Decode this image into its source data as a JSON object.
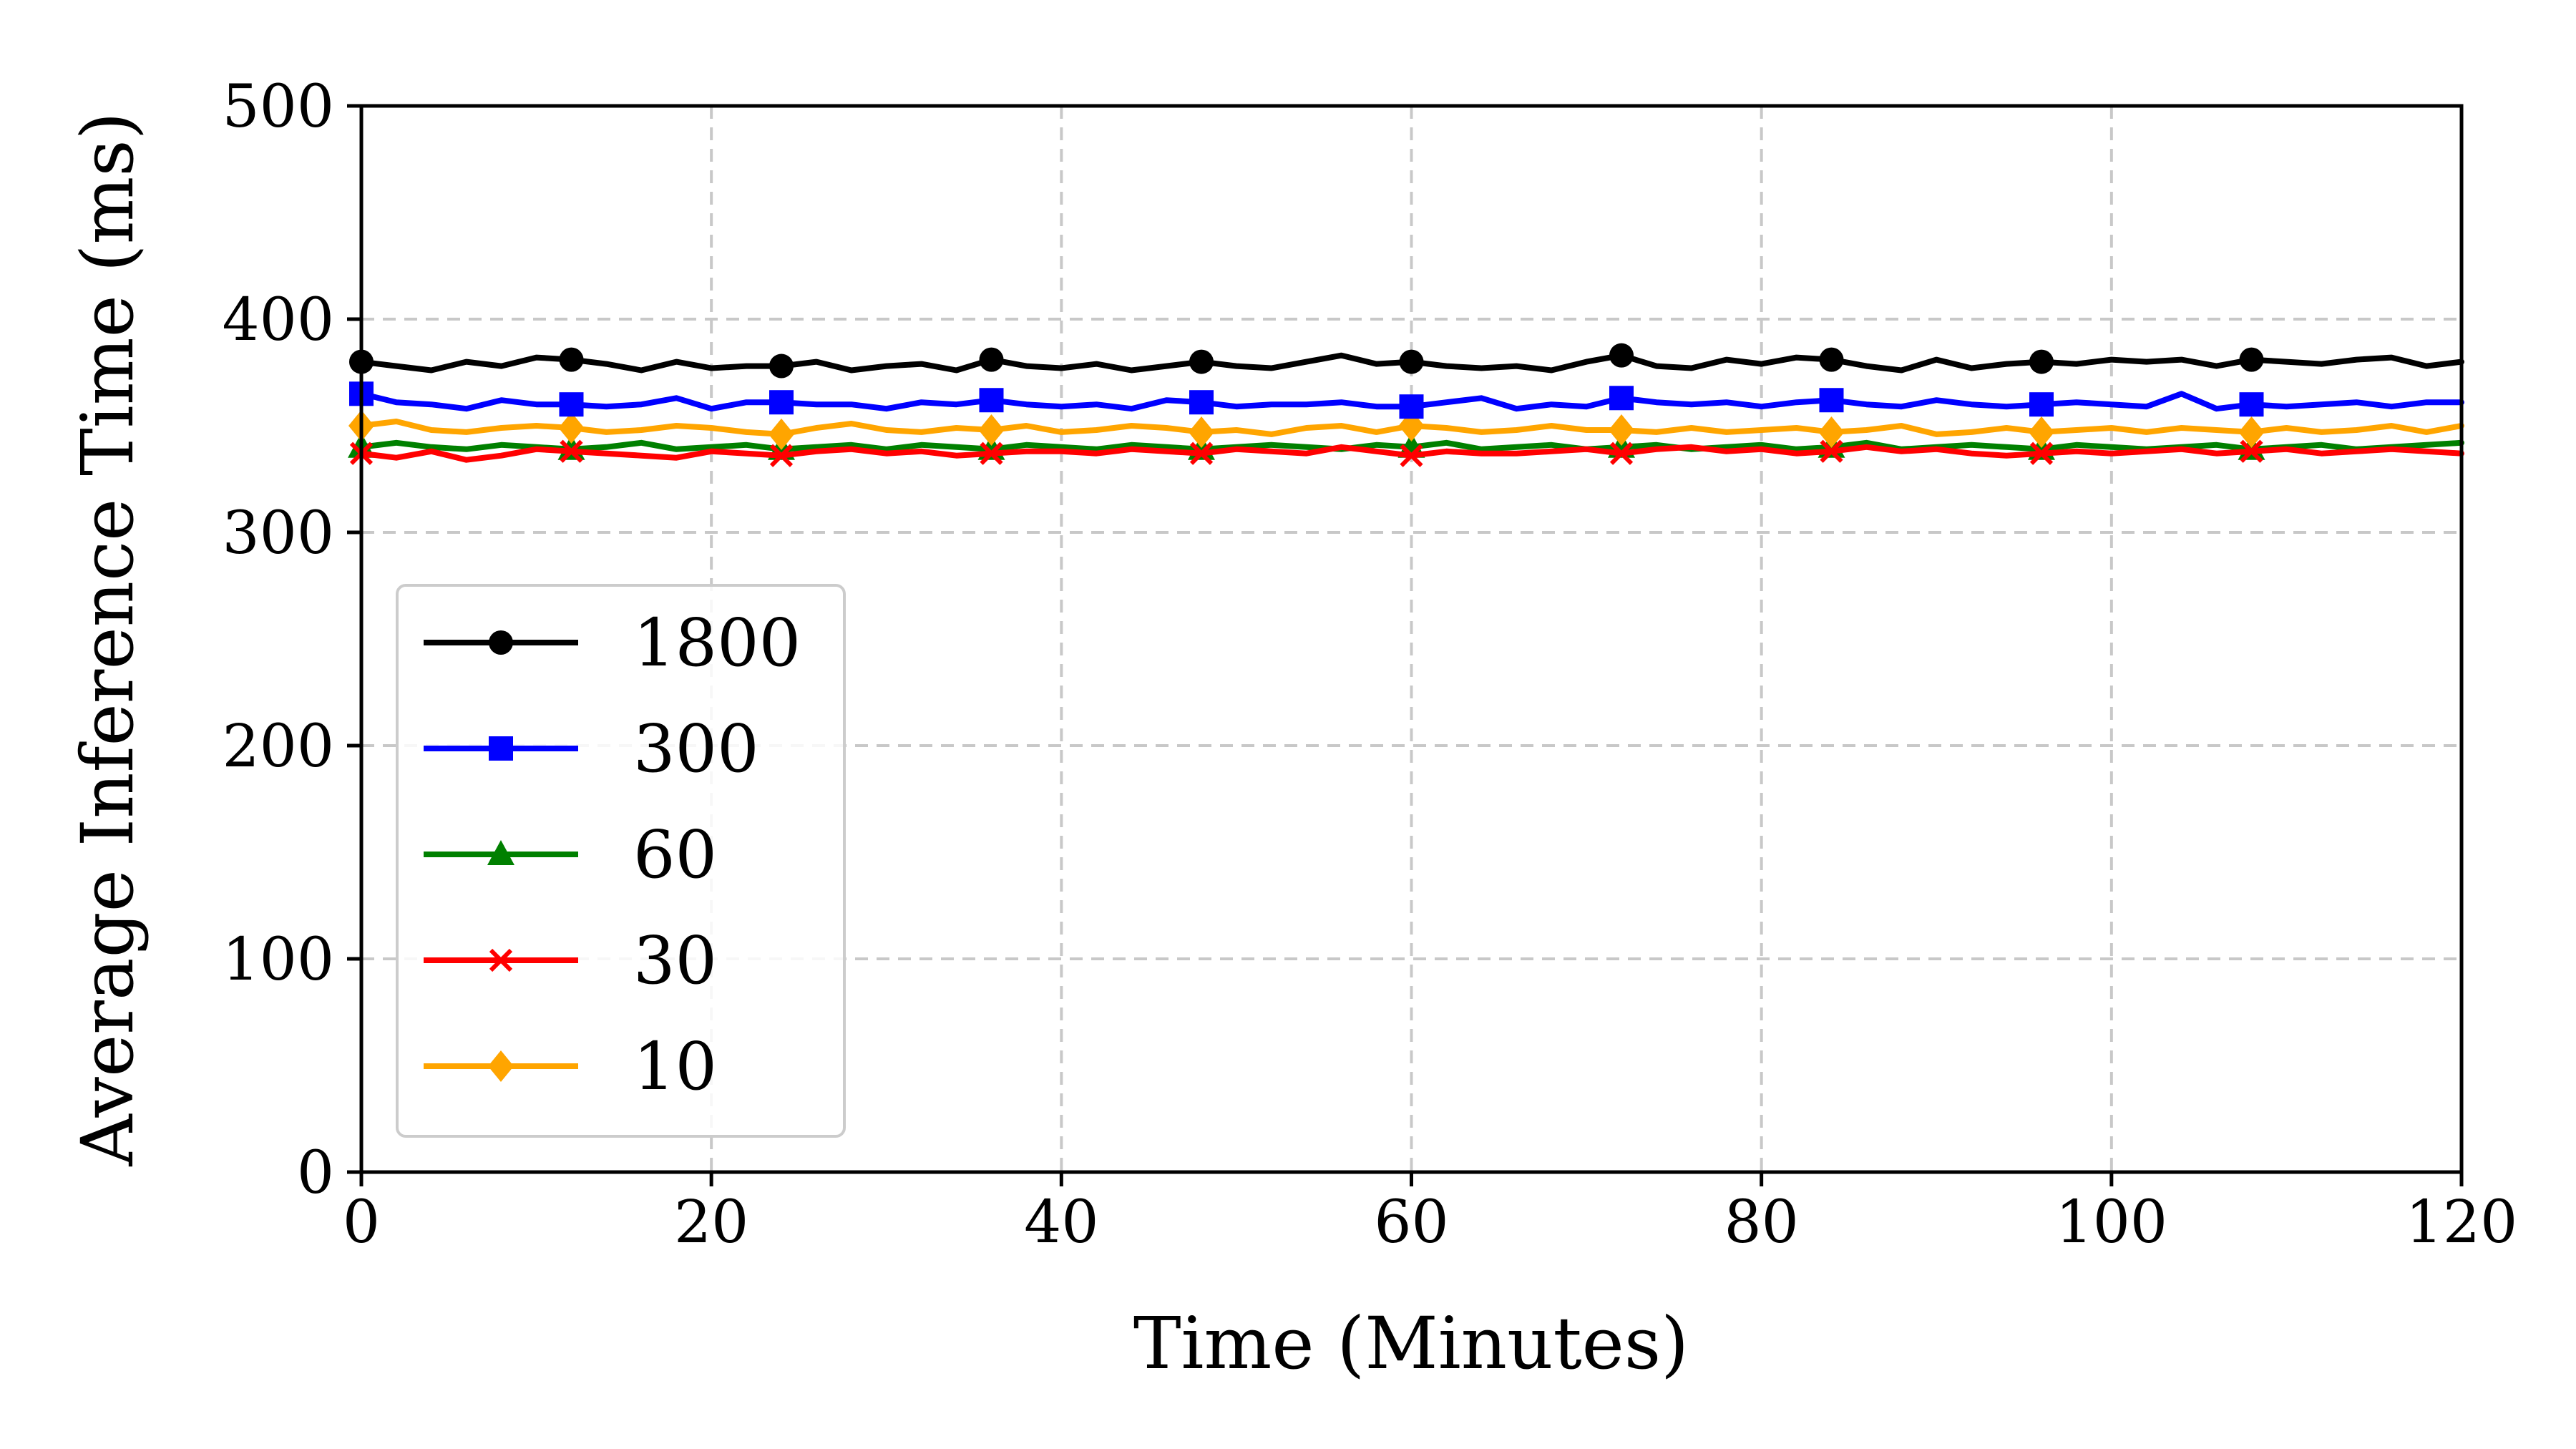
{
  "chart_data": {
    "type": "line",
    "title": "",
    "xlabel": "Time (Minutes)",
    "ylabel": "Average Inference Time (ms)",
    "xlim": [
      0,
      120
    ],
    "ylim": [
      0,
      500
    ],
    "xticks": [
      0,
      20,
      40,
      60,
      80,
      100,
      120
    ],
    "yticks": [
      0,
      100,
      200,
      300,
      400,
      500
    ],
    "xtick_labels": [
      "0",
      "20",
      "40",
      "60",
      "80",
      "100",
      "120"
    ],
    "ytick_labels": [
      "0",
      "100",
      "200",
      "300",
      "400",
      "500"
    ],
    "grid": true,
    "legend_position": "center-left",
    "x": [
      0,
      2,
      4,
      6,
      8,
      10,
      12,
      14,
      16,
      18,
      20,
      22,
      24,
      26,
      28,
      30,
      32,
      34,
      36,
      38,
      40,
      42,
      44,
      46,
      48,
      50,
      52,
      54,
      56,
      58,
      60,
      62,
      64,
      66,
      68,
      70,
      72,
      74,
      76,
      78,
      80,
      82,
      84,
      86,
      88,
      90,
      92,
      94,
      96,
      98,
      100,
      102,
      104,
      106,
      108,
      110,
      112,
      114,
      116,
      118,
      120
    ],
    "marker_x": [
      0,
      12,
      24,
      36,
      48,
      60,
      72,
      84,
      96,
      108
    ],
    "series": [
      {
        "name": "1800",
        "color": "#000000",
        "marker": "circle",
        "values": [
          380,
          378,
          376,
          380,
          378,
          382,
          381,
          379,
          376,
          380,
          377,
          378,
          378,
          380,
          376,
          378,
          379,
          376,
          381,
          378,
          377,
          379,
          376,
          378,
          380,
          378,
          377,
          380,
          383,
          379,
          380,
          378,
          377,
          378,
          376,
          380,
          383,
          378,
          377,
          381,
          379,
          382,
          381,
          378,
          376,
          381,
          377,
          379,
          380,
          379,
          381,
          380,
          381,
          378,
          381,
          380,
          379,
          381,
          382,
          378,
          380
        ]
      },
      {
        "name": "300",
        "color": "#0000ff",
        "marker": "square",
        "values": [
          365,
          361,
          360,
          358,
          362,
          360,
          360,
          359,
          360,
          363,
          358,
          361,
          361,
          360,
          360,
          358,
          361,
          360,
          362,
          360,
          359,
          360,
          358,
          362,
          361,
          359,
          360,
          360,
          361,
          359,
          359,
          361,
          363,
          358,
          360,
          359,
          363,
          361,
          360,
          361,
          359,
          361,
          362,
          360,
          359,
          362,
          360,
          359,
          360,
          361,
          360,
          359,
          365,
          358,
          360,
          359,
          360,
          361,
          359,
          361,
          361
        ]
      },
      {
        "name": "60",
        "color": "#008000",
        "marker": "triangle",
        "values": [
          340,
          342,
          340,
          339,
          341,
          340,
          339,
          340,
          342,
          339,
          340,
          341,
          339,
          340,
          341,
          339,
          341,
          340,
          339,
          341,
          340,
          339,
          341,
          340,
          339,
          340,
          341,
          340,
          339,
          341,
          340,
          342,
          339,
          340,
          341,
          339,
          340,
          341,
          339,
          340,
          341,
          339,
          340,
          342,
          339,
          340,
          341,
          340,
          339,
          341,
          340,
          339,
          340,
          341,
          339,
          340,
          341,
          339,
          340,
          341,
          342
        ]
      },
      {
        "name": "30",
        "color": "#ff0000",
        "marker": "x",
        "values": [
          337,
          335,
          338,
          334,
          336,
          339,
          338,
          337,
          336,
          335,
          338,
          337,
          336,
          338,
          339,
          337,
          338,
          336,
          337,
          338,
          338,
          337,
          339,
          338,
          337,
          339,
          338,
          337,
          340,
          338,
          336,
          338,
          337,
          337,
          338,
          339,
          337,
          339,
          340,
          338,
          339,
          337,
          338,
          340,
          338,
          339,
          337,
          336,
          337,
          338,
          337,
          338,
          339,
          337,
          338,
          339,
          337,
          338,
          339,
          338,
          337
        ]
      },
      {
        "name": "10",
        "color": "#ffa500",
        "marker": "diamond",
        "values": [
          350,
          352,
          348,
          347,
          349,
          350,
          349,
          347,
          348,
          350,
          349,
          347,
          346,
          349,
          351,
          348,
          347,
          349,
          348,
          350,
          347,
          348,
          350,
          349,
          347,
          348,
          346,
          349,
          350,
          347,
          350,
          349,
          347,
          348,
          350,
          348,
          348,
          347,
          349,
          347,
          348,
          349,
          347,
          348,
          350,
          346,
          347,
          349,
          347,
          348,
          349,
          347,
          349,
          348,
          347,
          349,
          347,
          348,
          350,
          347,
          350
        ]
      }
    ]
  }
}
